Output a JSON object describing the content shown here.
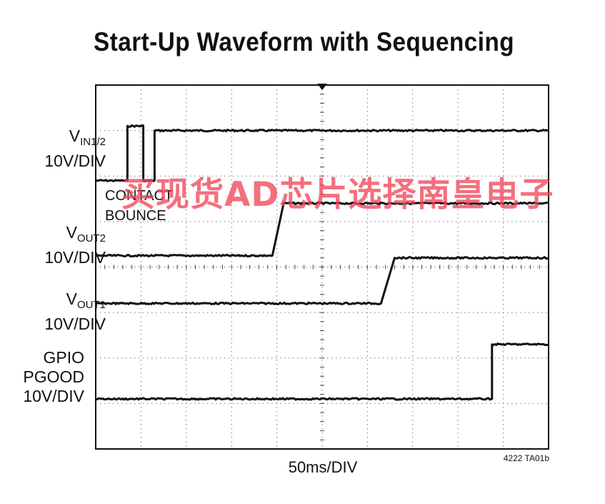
{
  "chart_data": {
    "type": "line",
    "title": "Start-Up Waveform with Sequencing",
    "xlabel": "50ms/DIV",
    "x_range": [
      0,
      10
    ],
    "grid": true,
    "series": [
      {
        "name": "V_IN1/2",
        "label_main": "V",
        "label_sub": "IN1/2",
        "scale": "10V/DIV",
        "baseline_div": 5.9,
        "points": [
          [
            0,
            5.9
          ],
          [
            0.7,
            5.9
          ],
          [
            0.7,
            7.1
          ],
          [
            1.05,
            7.1
          ],
          [
            1.05,
            5.9
          ],
          [
            1.3,
            5.9
          ],
          [
            1.3,
            7.0
          ],
          [
            10,
            7.0
          ]
        ]
      },
      {
        "name": "V_OUT2",
        "label_main": "V",
        "label_sub": "OUT2",
        "scale": "10V/DIV",
        "baseline_div": 4.25,
        "points": [
          [
            0,
            4.25
          ],
          [
            3.9,
            4.25
          ],
          [
            4.15,
            5.4
          ],
          [
            10,
            5.4
          ]
        ]
      },
      {
        "name": "V_OUT1",
        "label_main": "V",
        "label_sub": "OUT1",
        "scale": "10V/DIV",
        "baseline_div": 3.2,
        "points": [
          [
            0,
            3.2
          ],
          [
            6.3,
            3.2
          ],
          [
            6.6,
            4.2
          ],
          [
            10,
            4.2
          ]
        ]
      },
      {
        "name": "GPIO PGOOD",
        "label_lines": [
          "GPIO",
          "PGOOD"
        ],
        "scale": "10V/DIV",
        "baseline_div": 1.1,
        "points": [
          [
            0,
            1.1
          ],
          [
            8.75,
            1.1
          ],
          [
            8.75,
            2.3
          ],
          [
            10,
            2.3
          ]
        ]
      }
    ],
    "annotations": [
      "CONTACT",
      "BOUNCE"
    ],
    "figure_id": "4222 TA01b"
  },
  "watermark": "买现货AD芯片选择南皇电子"
}
